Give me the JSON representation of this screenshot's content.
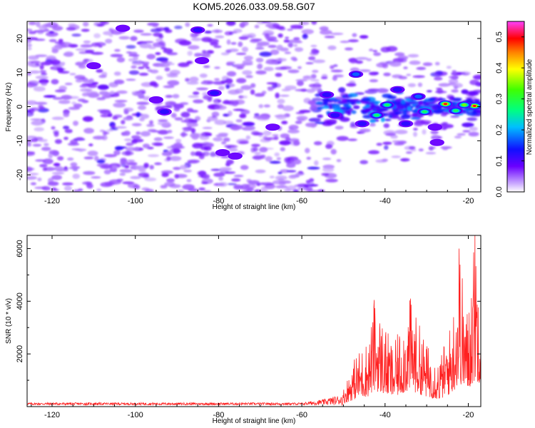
{
  "title": "KOM5.2026.033.09.58.G07",
  "chart_data": [
    {
      "type": "heatmap",
      "name": "spectrogram",
      "xlabel": "Height of straight line (km)",
      "ylabel": "Frequency (Hz)",
      "xlim": [
        -126,
        -17
      ],
      "ylim": [
        -25,
        25
      ],
      "xticks": [
        -120,
        -100,
        -80,
        -60,
        -40,
        -20
      ],
      "yticks": [
        -20,
        -10,
        0,
        10,
        20
      ],
      "colorbar": {
        "label": "Normalized spectral amplitude",
        "range": [
          0,
          0.55
        ],
        "ticks": [
          0.0,
          0.1,
          0.2,
          0.3,
          0.4,
          0.5
        ],
        "tick_labels": [
          "0.0",
          "0.1",
          "0.2",
          "0.3",
          "0.4",
          "0.5"
        ]
      },
      "description_of_signal": "broadband weak noise below -50 km; narrowing band around 0 Hz from -55 km to -17 km with peak amplitudes near -25 km and -18 km",
      "hotspots": [
        {
          "x": -25.5,
          "y": 0.8,
          "value": 0.52
        },
        {
          "x": -18.5,
          "y": 0.2,
          "value": 0.5
        },
        {
          "x": -21,
          "y": 0.5,
          "value": 0.35
        },
        {
          "x": -30.5,
          "y": -1.5,
          "value": 0.33
        },
        {
          "x": -23,
          "y": -1.2,
          "value": 0.33
        },
        {
          "x": -39.5,
          "y": 0.5,
          "value": 0.32
        },
        {
          "x": -42,
          "y": -2.5,
          "value": 0.28
        },
        {
          "x": -47,
          "y": 9.5,
          "value": 0.2
        },
        {
          "x": -37,
          "y": 5,
          "value": 0.15
        },
        {
          "x": -32,
          "y": 3,
          "value": 0.18
        },
        {
          "x": -45.5,
          "y": -5,
          "value": 0.15
        },
        {
          "x": -52,
          "y": -2.5,
          "value": 0.12
        },
        {
          "x": -54,
          "y": 3.5,
          "value": 0.12
        },
        {
          "x": -35,
          "y": -5,
          "value": 0.12
        },
        {
          "x": -28,
          "y": -6,
          "value": 0.1
        },
        {
          "x": -27.5,
          "y": -10.5,
          "value": 0.08
        },
        {
          "x": -93,
          "y": -1.5,
          "value": 0.12
        },
        {
          "x": -81,
          "y": 4,
          "value": 0.12
        },
        {
          "x": -84,
          "y": 13.5,
          "value": 0.1
        },
        {
          "x": -103,
          "y": 23,
          "value": 0.09
        },
        {
          "x": -79,
          "y": -13.5,
          "value": 0.1
        },
        {
          "x": -76,
          "y": -14.5,
          "value": 0.1
        },
        {
          "x": -95,
          "y": 2,
          "value": 0.1
        },
        {
          "x": -85,
          "y": 22.5,
          "value": 0.12
        },
        {
          "x": -67,
          "y": -6,
          "value": 0.1
        },
        {
          "x": -110,
          "y": 12,
          "value": 0.08
        }
      ]
    },
    {
      "type": "line",
      "name": "snr",
      "xlabel": "Height of straight line (km)",
      "ylabel": "SNR (10 * v/v)",
      "xlim": [
        -126,
        -17
      ],
      "ylim": [
        0,
        6500
      ],
      "xticks": [
        -120,
        -100,
        -80,
        -60,
        -40,
        -20
      ],
      "yticks": [
        2000,
        4000,
        6000
      ],
      "color": "#ff0000",
      "envelope": [
        {
          "x": -126,
          "y": 150
        },
        {
          "x": -60,
          "y": 150
        },
        {
          "x": -55,
          "y": 350
        },
        {
          "x": -50,
          "y": 700
        },
        {
          "x": -47,
          "y": 2000
        },
        {
          "x": -44,
          "y": 2600
        },
        {
          "x": -42.5,
          "y": 4050
        },
        {
          "x": -38,
          "y": 2300
        },
        {
          "x": -34,
          "y": 4100
        },
        {
          "x": -30,
          "y": 2400
        },
        {
          "x": -27,
          "y": 1800
        },
        {
          "x": -24,
          "y": 3300
        },
        {
          "x": -22,
          "y": 6000
        },
        {
          "x": -20.5,
          "y": 3500
        },
        {
          "x": -18.5,
          "y": 6500
        },
        {
          "x": -17,
          "y": 5900
        }
      ],
      "peaks": [
        {
          "x": -42.6,
          "y": 4050
        },
        {
          "x": -33.9,
          "y": 4100
        },
        {
          "x": -22.2,
          "y": 6000
        },
        {
          "x": -18.4,
          "y": 6500
        }
      ]
    }
  ]
}
